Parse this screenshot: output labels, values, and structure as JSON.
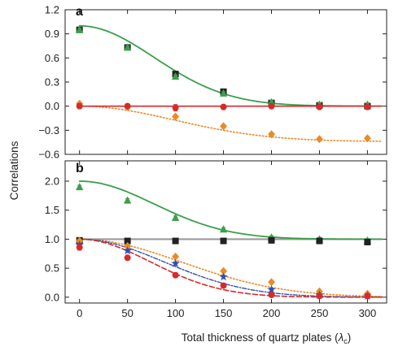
{
  "figure": {
    "xlabel": "Total thickness of quartz plates (",
    "xlabel_symbol": "λ",
    "xlabel_sub": "c",
    "xlabel_close": ")",
    "ylabel": "Correlations"
  },
  "chart_data": [
    {
      "panel": "a",
      "type": "scatter",
      "xlim": [
        -15,
        320
      ],
      "ylim": [
        -0.6,
        1.2
      ],
      "x_ticks": [
        0,
        50,
        100,
        150,
        200,
        250,
        300
      ],
      "x_tick_labels": [
        "",
        "",
        "",
        "",
        "",
        "",
        ""
      ],
      "y_ticks": [
        -0.6,
        -0.3,
        0.0,
        0.3,
        0.6,
        0.9,
        1.2
      ],
      "y_tick_labels": [
        "−0.6",
        "−0.3",
        "0.0",
        "0.3",
        "0.6",
        "0.9",
        "1.2"
      ],
      "grid": false,
      "series": [
        {
          "marker": "square",
          "color": "#222222",
          "x": [
            0,
            50,
            100,
            150,
            200,
            250,
            300
          ],
          "y": [
            0.95,
            0.73,
            0.4,
            0.18,
            0.04,
            0.01,
            0.0
          ],
          "yerr": [
            0.02,
            0.02,
            0.02,
            0.02,
            0.02,
            0.02,
            0.02
          ]
        },
        {
          "marker": "triangle",
          "color": "#3aa04a",
          "x": [
            0,
            50,
            100,
            150,
            200,
            250,
            300
          ],
          "y": [
            0.95,
            0.73,
            0.37,
            0.16,
            0.05,
            0.02,
            0.02
          ],
          "yerr": [
            0.02,
            0.02,
            0.02,
            0.02,
            0.02,
            0.02,
            0.02
          ]
        },
        {
          "marker": "diamond",
          "color": "#e98a2c",
          "x": [
            0,
            50,
            100,
            150,
            200,
            250,
            300
          ],
          "y": [
            0.03,
            -0.01,
            -0.13,
            -0.25,
            -0.35,
            -0.41,
            -0.4
          ],
          "yerr": [
            0.02,
            0.02,
            0.02,
            0.02,
            0.02,
            0.02,
            0.02
          ]
        },
        {
          "marker": "circle",
          "color": "#d72a2a",
          "x": [
            0,
            50,
            100,
            150,
            200,
            250,
            300
          ],
          "y": [
            0.0,
            0.0,
            -0.02,
            -0.01,
            0.0,
            -0.01,
            -0.01
          ],
          "yerr": [
            0.03,
            0.03,
            0.04,
            0.03,
            0.03,
            0.03,
            0.03
          ]
        }
      ],
      "curves": [
        {
          "style": "solid",
          "color": "#3aa04a",
          "width": 1.8,
          "formula": "gauss",
          "offset": 0.0,
          "amplitude": 1.0,
          "scale": 110
        },
        {
          "style": "dotted",
          "color": "#e98a2c",
          "width": 1.6,
          "formula": "gauss",
          "offset": 0.0,
          "amplitude": -0.44,
          "scale": 140,
          "complement": true
        },
        {
          "style": "solid",
          "color": "#d72a2a",
          "width": 1.6,
          "formula": "constant",
          "offset": 0.0
        }
      ]
    },
    {
      "panel": "b",
      "type": "scatter",
      "xlim": [
        -15,
        320
      ],
      "ylim": [
        -0.1,
        2.35
      ],
      "x_ticks": [
        0,
        50,
        100,
        150,
        200,
        250,
        300
      ],
      "x_tick_labels": [
        "0",
        "50",
        "100",
        "150",
        "200",
        "250",
        "300"
      ],
      "y_ticks": [
        0.0,
        0.5,
        1.0,
        1.5,
        2.0
      ],
      "y_tick_labels": [
        "0.0",
        "0.5",
        "1.0",
        "1.5",
        "2.0"
      ],
      "grid": false,
      "series": [
        {
          "marker": "triangle",
          "color": "#3aa04a",
          "x": [
            0,
            50,
            100,
            150,
            200,
            250,
            300
          ],
          "y": [
            1.9,
            1.67,
            1.37,
            1.17,
            1.03,
            1.0,
            0.98
          ],
          "yerr": [
            0.03,
            0.03,
            0.03,
            0.03,
            0.03,
            0.03,
            0.03
          ]
        },
        {
          "marker": "square",
          "color": "#222222",
          "x": [
            0,
            50,
            100,
            150,
            200,
            250,
            300
          ],
          "y": [
            0.98,
            0.97,
            0.97,
            0.97,
            0.98,
            0.97,
            0.95
          ],
          "yerr": [
            0.02,
            0.02,
            0.02,
            0.02,
            0.02,
            0.02,
            0.02
          ]
        },
        {
          "marker": "diamond",
          "color": "#e98a2c",
          "x": [
            0,
            50,
            100,
            150,
            200,
            250,
            300
          ],
          "y": [
            0.97,
            0.88,
            0.7,
            0.45,
            0.26,
            0.1,
            0.06
          ],
          "yerr": [
            0.02,
            0.02,
            0.02,
            0.02,
            0.02,
            0.02,
            0.02
          ]
        },
        {
          "marker": "star",
          "color": "#3050b0",
          "x": [
            0,
            50,
            100,
            150,
            200,
            250,
            300
          ],
          "y": [
            0.9,
            0.8,
            0.58,
            0.35,
            0.13,
            0.04,
            0.02
          ],
          "yerr": [
            0.03,
            0.03,
            0.03,
            0.03,
            0.03,
            0.03,
            0.03
          ]
        },
        {
          "marker": "circle",
          "color": "#d72a2a",
          "x": [
            0,
            50,
            100,
            150,
            200,
            250,
            300
          ],
          "y": [
            0.86,
            0.68,
            0.38,
            0.2,
            0.04,
            0.02,
            0.02
          ],
          "yerr": [
            0.05,
            0.04,
            0.04,
            0.03,
            0.03,
            0.03,
            0.03
          ]
        }
      ],
      "curves": [
        {
          "style": "solid",
          "color": "#999999",
          "width": 2.2,
          "formula": "constant",
          "offset": 1.0
        },
        {
          "style": "solid",
          "color": "#3aa04a",
          "width": 1.8,
          "formula": "gauss",
          "offset": 1.0,
          "amplitude": 1.0,
          "scale": 110
        },
        {
          "style": "dotted",
          "color": "#e98a2c",
          "width": 1.6,
          "formula": "gauss",
          "offset": 0.0,
          "amplitude": 1.0,
          "scale": 150
        },
        {
          "style": "dashdot",
          "color": "#3050b0",
          "width": 1.4,
          "formula": "gauss",
          "offset": 0.0,
          "amplitude": 1.0,
          "scale": 125
        },
        {
          "style": "dashed",
          "color": "#d72a2a",
          "width": 1.6,
          "formula": "gauss",
          "offset": 0.0,
          "amplitude": 1.0,
          "scale": 105
        }
      ]
    }
  ]
}
